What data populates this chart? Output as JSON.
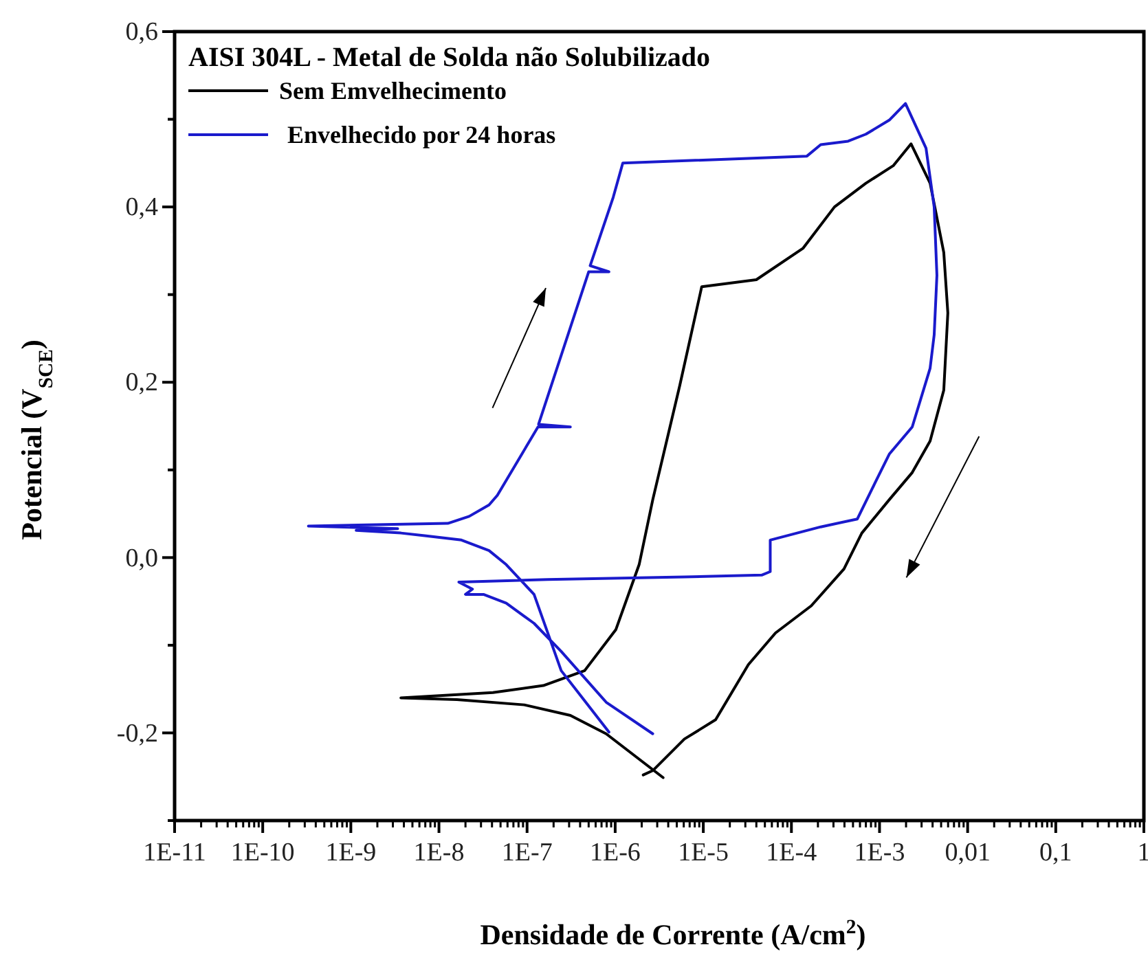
{
  "chart_data": {
    "type": "line",
    "legend_title": "AISI 304L - Metal de Solda não Solubilizado",
    "xlabel": "Densidade de Corrente (A/cm$^{2}$)",
    "ylabel": "Potencial (V$_{SCE}$)",
    "log": "x",
    "legend": "top left",
    "grid": false,
    "marker": "none",
    "line_style": "solid",
    "xlim": [
      1e-11,
      1
    ],
    "ylim": [
      -0.3,
      0.6
    ],
    "xticks": [
      {
        "value": 1e-11,
        "label": "1E-11"
      },
      {
        "value": 1e-10,
        "label": "1E-10"
      },
      {
        "value": 1e-09,
        "label": "1E-9"
      },
      {
        "value": 1e-08,
        "label": "1E-8"
      },
      {
        "value": 1e-07,
        "label": "1E-7"
      },
      {
        "value": 1e-06,
        "label": "1E-6"
      },
      {
        "value": 1e-05,
        "label": "1E-5"
      },
      {
        "value": 0.0001,
        "label": "1E-4"
      },
      {
        "value": 0.001,
        "label": "1E-3"
      },
      {
        "value": 0.01,
        "label": "0,01"
      },
      {
        "value": 0.1,
        "label": "0,1"
      },
      {
        "value": 1,
        "label": "1"
      }
    ],
    "yticks": [
      {
        "value": 0.6,
        "label": "0,6"
      },
      {
        "value": 0.5,
        "label": null
      },
      {
        "value": 0.4,
        "label": "0,4"
      },
      {
        "value": 0.3,
        "label": null
      },
      {
        "value": 0.2,
        "label": "0,2"
      },
      {
        "value": 0.1,
        "label": null
      },
      {
        "value": 0,
        "label": "0,0"
      },
      {
        "value": -0.1,
        "label": null
      },
      {
        "value": -0.2,
        "label": "-0,2"
      },
      {
        "value": -0.3,
        "label": null
      }
    ],
    "series": [
      {
        "name": "Sem Emvelhecimento",
        "color": "#000000",
        "x": [
          3.5e-06,
          7.9e-07,
          3.1e-07,
          9.3e-08,
          1.6e-08,
          3.7e-09,
          4.1e-08,
          1.53e-07,
          4.5e-07,
          1.02e-06,
          1.87e-06,
          2.67e-06,
          5.4e-06,
          9.6e-06,
          4e-05,
          0.000136,
          0.000308,
          0.0007,
          0.00143,
          0.00228,
          0.00375,
          0.00536,
          0.00596,
          0.00536,
          0.00375,
          0.00235,
          0.00129,
          0.00063,
          0.000395,
          0.000168,
          6.6e-05,
          3.25e-05,
          1.38e-05,
          6.1e-06,
          2.67e-06,
          2.08e-06
        ],
        "values": [
          -0.251,
          -0.201,
          -0.18,
          -0.168,
          -0.162,
          -0.16,
          -0.154,
          -0.146,
          -0.129,
          -0.082,
          -0.008,
          0.066,
          0.196,
          0.309,
          0.317,
          0.353,
          0.4,
          0.427,
          0.447,
          0.472,
          0.427,
          0.348,
          0.279,
          0.191,
          0.133,
          0.097,
          0.066,
          0.028,
          -0.013,
          -0.055,
          -0.086,
          -0.122,
          -0.185,
          -0.207,
          -0.243,
          -0.248
        ]
      },
      {
        "name": "Envelhecido por 24 horas",
        "color": "#1a1acc",
        "x": [
          8.5e-07,
          2.44e-07,
          1.2e-07,
          5.8e-08,
          3.7e-08,
          1.8e-08,
          6.9e-09,
          3.7e-09,
          1.15e-09,
          3.4e-09,
          3.3e-10,
          1.26e-08,
          2.2e-08,
          3.7e-08,
          4.6e-08,
          1.33e-07,
          3.1e-07,
          1.35e-07,
          5e-07,
          8.5e-07,
          5.2e-07,
          9.5e-07,
          1.22e-06,
          0.00015,
          0.000215,
          0.00044,
          0.0007,
          0.00129,
          0.00197,
          0.00337,
          0.00417,
          0.00448,
          0.00417,
          0.00375,
          0.00235,
          0.00129,
          0.000897,
          0.00056,
          0.000215,
          5.75e-05,
          5.75e-05,
          4.6e-05,
          6.1e-06,
          1.7e-07,
          1.68e-08,
          2.4e-08,
          2e-08,
          3.2e-08,
          5.8e-08,
          1.2e-07,
          2.44e-07,
          7.9e-07,
          2.67e-06
        ],
        "values": [
          -0.199,
          -0.129,
          -0.042,
          -0.008,
          0.008,
          0.02,
          0.025,
          0.028,
          0.031,
          0.033,
          0.036,
          0.039,
          0.047,
          0.06,
          0.071,
          0.149,
          0.149,
          0.152,
          0.326,
          0.326,
          0.333,
          0.411,
          0.45,
          0.458,
          0.471,
          0.475,
          0.483,
          0.499,
          0.518,
          0.467,
          0.4,
          0.322,
          0.254,
          0.216,
          0.149,
          0.118,
          0.086,
          0.044,
          0.035,
          0.02,
          -0.016,
          -0.02,
          -0.022,
          -0.025,
          -0.028,
          -0.036,
          -0.042,
          -0.042,
          -0.052,
          -0.075,
          -0.107,
          -0.165,
          -0.201
        ]
      }
    ]
  }
}
